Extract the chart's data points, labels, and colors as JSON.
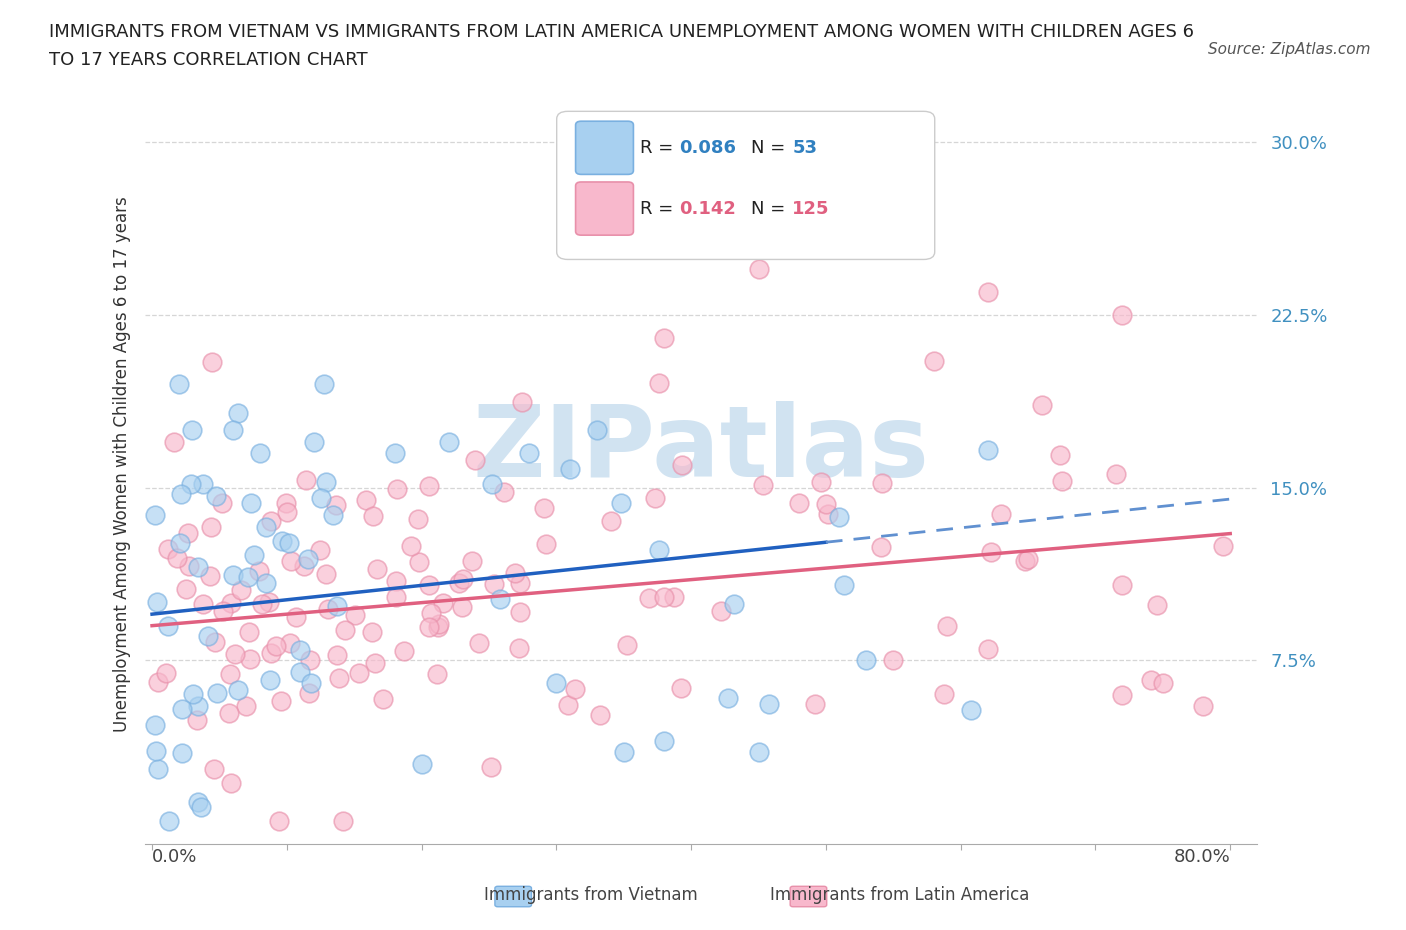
{
  "title_line1": "IMMIGRANTS FROM VIETNAM VS IMMIGRANTS FROM LATIN AMERICA UNEMPLOYMENT AMONG WOMEN WITH CHILDREN AGES 6",
  "title_line2": "TO 17 YEARS CORRELATION CHART",
  "source": "Source: ZipAtlas.com",
  "ylabel": "Unemployment Among Women with Children Ages 6 to 17 years",
  "ytick_values": [
    0.075,
    0.15,
    0.225,
    0.3
  ],
  "ytick_labels": [
    "7.5%",
    "15.0%",
    "22.5%",
    "30.0%"
  ],
  "xrange": [
    0.0,
    0.8
  ],
  "yrange": [
    -0.005,
    0.325
  ],
  "legend_r_vietnam": "0.086",
  "legend_n_vietnam": "53",
  "legend_r_latin": "0.142",
  "legend_n_latin": "125",
  "vietnam_scatter_face": "#a8d0f0",
  "vietnam_scatter_edge": "#7ab0e0",
  "latin_scatter_face": "#f8b8cc",
  "latin_scatter_edge": "#e890aa",
  "vietnam_line_solid_color": "#2060c0",
  "vietnam_line_dash_color": "#6090d0",
  "latin_line_color": "#e06080",
  "background_color": "#ffffff",
  "grid_color": "#cccccc",
  "ytick_color": "#4090c0",
  "watermark_color": "#cce0f0",
  "title_fontsize": 13,
  "source_fontsize": 11,
  "tick_fontsize": 13,
  "ylabel_fontsize": 12,
  "legend_fontsize": 13,
  "scatter_size": 180,
  "scatter_alpha": 0.65
}
